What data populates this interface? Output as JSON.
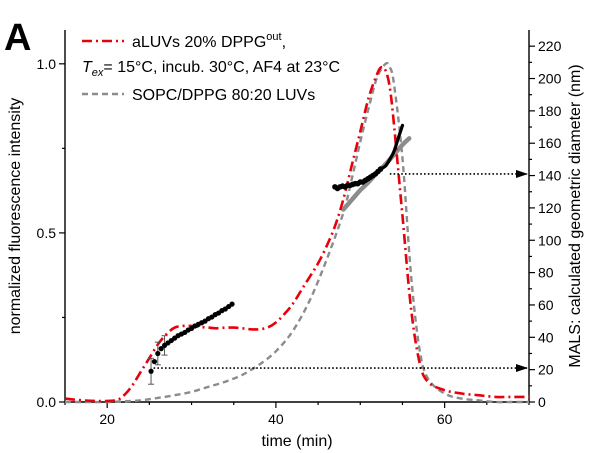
{
  "chart_data": {
    "type": "line",
    "panel_label": "A",
    "xlabel": "time (min)",
    "ylabel_left": "normalized fluorescence intensity",
    "ylabel_right": "MALS: calculated geometric diameter (nm)",
    "xlim": [
      15,
      70
    ],
    "ylim_left": [
      0,
      1.1
    ],
    "ylim_right": [
      0,
      230
    ],
    "x_ticks": [
      20,
      40,
      60
    ],
    "y_left_ticks": [
      "0.0",
      "0.5",
      "1.0"
    ],
    "y_left_tick_values": [
      0,
      0.5,
      1.0
    ],
    "y_right_ticks": [
      0,
      20,
      40,
      60,
      80,
      100,
      120,
      140,
      160,
      180,
      200,
      220
    ],
    "legend": {
      "aluvs_name": "aLUVs 20% DPPG",
      "aluvs_superscript": "out",
      "aluvs_suffix": ",",
      "tex_main": "T",
      "tex_sub": "ex",
      "tex_rest": "= 15°C, incub. 30°C, AF4 at 23°C",
      "sopc_name": "SOPC/DPPG 80:20 LUVs",
      "placement": "top-left"
    },
    "colors": {
      "aluvs": "#e8000b",
      "sopc": "#8c8c8c",
      "mals_points": "#000000",
      "mals_fit": "#8c8c8c",
      "arrows": "#000000"
    },
    "series": [
      {
        "name": "aLUVs 20% DPPG",
        "axis": "left",
        "style": "dash-dot",
        "x": [
          15,
          17,
          19,
          21,
          22,
          23,
          24,
          25,
          26,
          27,
          28,
          29,
          30,
          31,
          32,
          33,
          34,
          35,
          36,
          37,
          38,
          39,
          40,
          41,
          42,
          43,
          44,
          45,
          46,
          47,
          48,
          49,
          50,
          51,
          52,
          52.5,
          53,
          53.5,
          54,
          55,
          56,
          57,
          58,
          60,
          62,
          64,
          66,
          68,
          70
        ],
        "y": [
          0.01,
          0.005,
          0.003,
          0.005,
          0.02,
          0.05,
          0.09,
          0.13,
          0.17,
          0.2,
          0.22,
          0.225,
          0.225,
          0.222,
          0.22,
          0.218,
          0.22,
          0.22,
          0.218,
          0.215,
          0.215,
          0.22,
          0.235,
          0.26,
          0.29,
          0.33,
          0.37,
          0.41,
          0.46,
          0.52,
          0.6,
          0.7,
          0.8,
          0.9,
          0.97,
          0.99,
          0.98,
          0.93,
          0.82,
          0.55,
          0.28,
          0.12,
          0.06,
          0.035,
          0.025,
          0.02,
          0.015,
          0.015,
          0.015
        ]
      },
      {
        "name": "SOPC/DPPG 80:20 LUVs",
        "axis": "left",
        "style": "dashed",
        "x": [
          15,
          18,
          20,
          22,
          24,
          26,
          28,
          30,
          32,
          34,
          36,
          38,
          40,
          42,
          44,
          46,
          48,
          49,
          50,
          51,
          52,
          53,
          53.5,
          54,
          55,
          56,
          57,
          58,
          60,
          62,
          64,
          66,
          68,
          70
        ],
        "y": [
          0.0,
          0.0,
          0.0,
          0.002,
          0.005,
          0.012,
          0.02,
          0.03,
          0.045,
          0.06,
          0.08,
          0.11,
          0.15,
          0.21,
          0.3,
          0.42,
          0.56,
          0.66,
          0.77,
          0.87,
          0.96,
          1.0,
          0.99,
          0.94,
          0.72,
          0.38,
          0.16,
          0.07,
          0.025,
          0.01,
          0.005,
          0.0,
          0.0,
          0.0
        ]
      },
      {
        "name": "",
        "axis": "right",
        "style": "markers",
        "x": [
          25.2,
          25.6,
          26.0,
          26.4,
          26.8,
          27.2,
          27.6,
          28.0,
          28.4,
          28.8,
          29.2,
          29.6,
          30.0,
          30.4,
          30.8,
          31.2,
          31.6,
          32.0,
          32.4,
          32.8,
          33.2,
          33.6,
          34.0,
          34.4,
          34.8
        ],
        "y": [
          19,
          25,
          30,
          33,
          35,
          36.5,
          38,
          39.5,
          41,
          42,
          43,
          44.5,
          45.5,
          47,
          48,
          49,
          50,
          51.5,
          52.5,
          54,
          55,
          56.5,
          57.5,
          59,
          60.5
        ],
        "error_x": [
          25.2,
          26.0,
          26.8
        ],
        "error_y": [
          8,
          7,
          6
        ]
      },
      {
        "name": "",
        "axis": "right",
        "style": "markers",
        "x": [
          47.0,
          47.3,
          47.6,
          47.9,
          48.2,
          48.5,
          48.8,
          49.1,
          49.4,
          49.7,
          50.0,
          50.3,
          50.6,
          50.9,
          51.2,
          51.5,
          51.8,
          52.1,
          52.4
        ],
        "y": [
          133,
          132,
          133,
          133.5,
          133,
          134,
          134,
          134.5,
          135,
          135,
          136,
          136,
          137,
          138,
          139,
          140,
          141,
          142.5,
          144
        ],
        "curve_x": [
          52.4,
          53.0,
          53.5,
          54.0,
          54.5,
          55.0
        ],
        "curve_y": [
          144,
          146,
          150,
          155,
          163,
          171
        ]
      },
      {
        "name": "",
        "axis": "right",
        "style": "fit",
        "x": [
          48.0,
          49.0,
          50.0,
          51.0,
          52.0,
          53.0,
          54.0,
          55.0,
          55.8
        ],
        "y": [
          119,
          125,
          131,
          136,
          142,
          147,
          153,
          159,
          163
        ]
      }
    ],
    "arrows": [
      {
        "axis": "right",
        "y": 141,
        "from_x": 53.5,
        "to_x": 70
      },
      {
        "axis": "right",
        "y": 21,
        "from_x": 25.5,
        "to_x": 70
      }
    ]
  }
}
